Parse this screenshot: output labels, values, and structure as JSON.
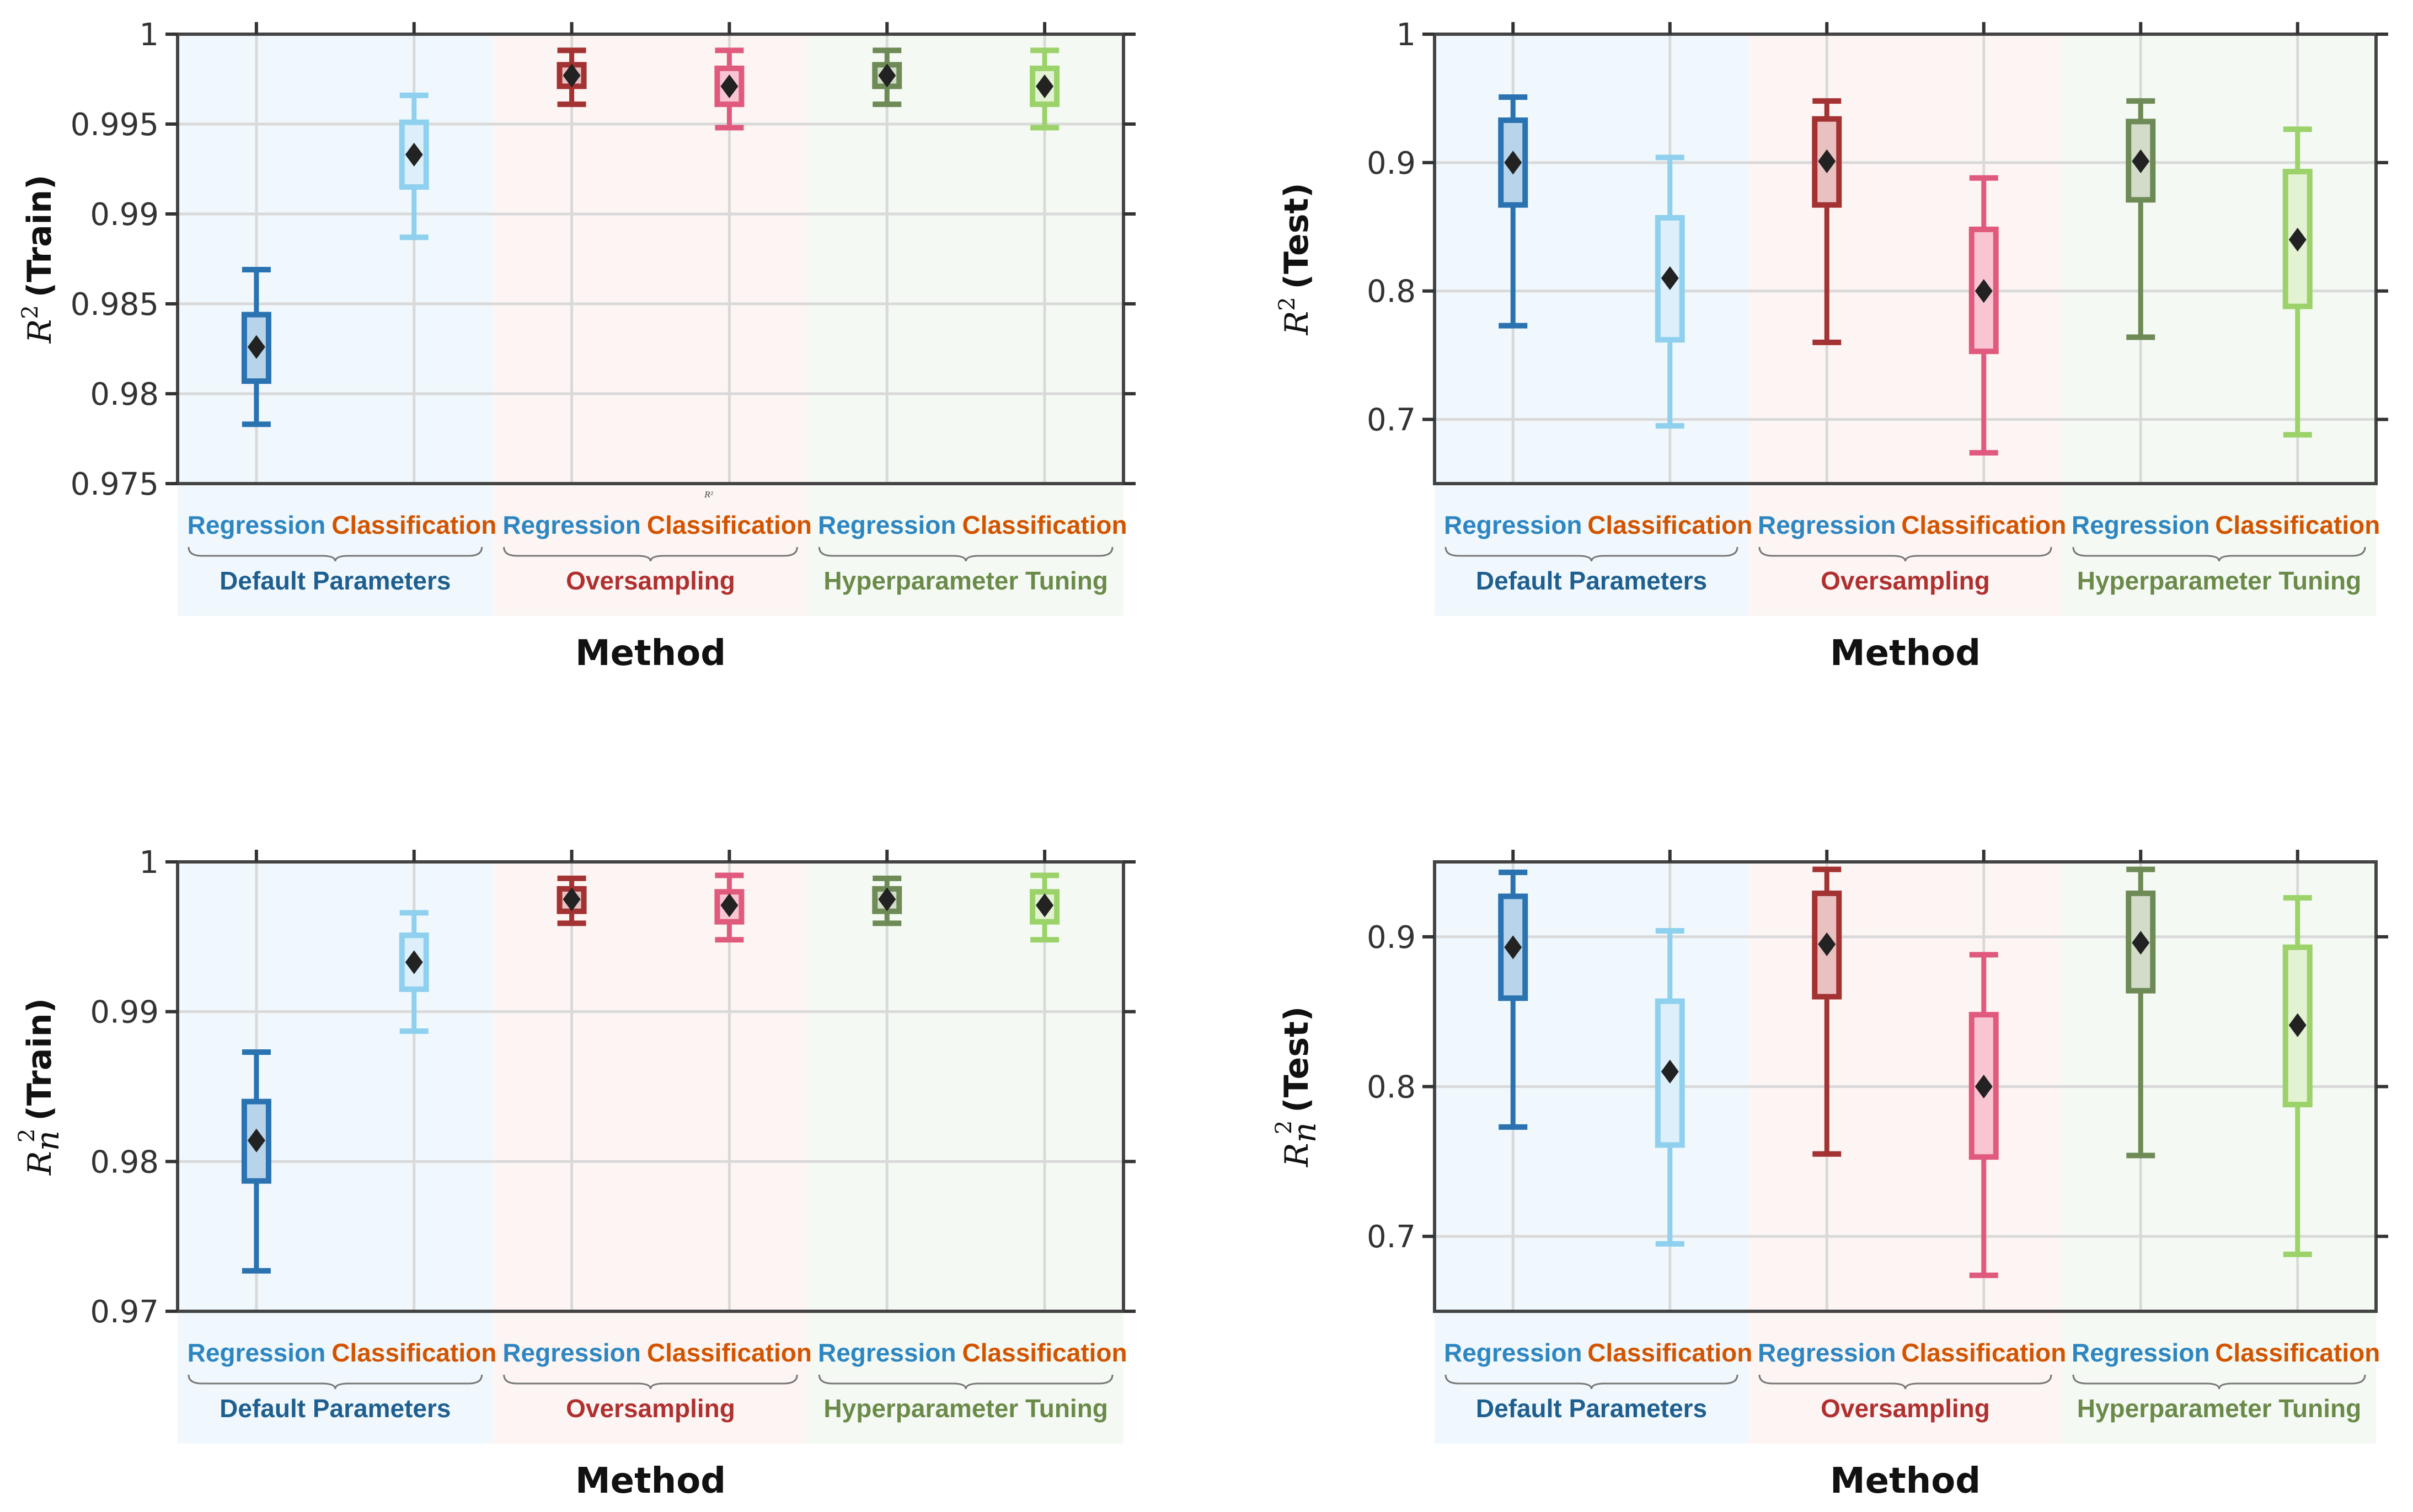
{
  "styles": {
    "colors": {
      "reg_label": "#2e86c1",
      "cls_label": "#d35400",
      "group_default": "#1f5f8f",
      "group_oversampling": "#b03030",
      "group_tuning": "#6b8a4a",
      "bg_default": "#f0f8fd",
      "bg_oversampling": "#fdf5f3",
      "bg_tuning": "#f4faf3",
      "box_edges": [
        "#2a72b0",
        "#8fd0ee",
        "#a33233",
        "#e05a7e",
        "#6e8a56",
        "#9bd26a"
      ],
      "box_fills": [
        "#b7d4ea",
        "#dceffa",
        "#e9c1c1",
        "#f9c5d3",
        "#d3dcc8",
        "#e3f2d2"
      ]
    }
  },
  "chart_data": [
    {
      "type": "box",
      "metric": "R2 Train",
      "ylabel": {
        "symbol": "R",
        "sup": "2",
        "sub": "",
        "word": "(Train)"
      },
      "xlabel": "Method",
      "ylim": [
        0.975,
        1.0
      ],
      "yticks": [
        0.975,
        0.98,
        0.985,
        0.99,
        0.995,
        1.0
      ],
      "ytick_labels": [
        "0.975",
        "0.98",
        "0.985",
        "0.99",
        "0.995",
        "1"
      ],
      "categories": [
        "Regression",
        "Classification",
        "Regression",
        "Classification",
        "Regression",
        "Classification"
      ],
      "groups": [
        "Default Parameters",
        "Oversampling",
        "Hyperparameter Tuning"
      ],
      "stray_text": "R²",
      "boxes": [
        {
          "whislo": 0.9783,
          "q1": 0.9807,
          "mean": 0.9826,
          "q3": 0.9844,
          "whishi": 0.9869
        },
        {
          "whislo": 0.9887,
          "q1": 0.9915,
          "mean": 0.9933,
          "q3": 0.9951,
          "whishi": 0.9966
        },
        {
          "whislo": 0.9961,
          "q1": 0.9971,
          "mean": 0.9977,
          "q3": 0.9983,
          "whishi": 0.9991
        },
        {
          "whislo": 0.9948,
          "q1": 0.9961,
          "mean": 0.9971,
          "q3": 0.9981,
          "whishi": 0.9991
        },
        {
          "whislo": 0.9961,
          "q1": 0.9971,
          "mean": 0.9977,
          "q3": 0.9983,
          "whishi": 0.9991
        },
        {
          "whislo": 0.9948,
          "q1": 0.9961,
          "mean": 0.9971,
          "q3": 0.9981,
          "whishi": 0.9991
        }
      ]
    },
    {
      "type": "box",
      "metric": "R2 Test",
      "ylabel": {
        "symbol": "R",
        "sup": "2",
        "sub": "",
        "word": "(Test)"
      },
      "xlabel": "Method",
      "ylim": [
        0.65,
        1.0
      ],
      "yticks": [
        0.7,
        0.8,
        0.9,
        1.0
      ],
      "ytick_labels": [
        "0.7",
        "0.8",
        "0.9",
        "1"
      ],
      "categories": [
        "Regression",
        "Classification",
        "Regression",
        "Classification",
        "Regression",
        "Classification"
      ],
      "groups": [
        "Default Parameters",
        "Oversampling",
        "Hyperparameter Tuning"
      ],
      "boxes": [
        {
          "whislo": 0.773,
          "q1": 0.867,
          "mean": 0.9,
          "q3": 0.933,
          "whishi": 0.951
        },
        {
          "whislo": 0.695,
          "q1": 0.762,
          "mean": 0.81,
          "q3": 0.857,
          "whishi": 0.904
        },
        {
          "whislo": 0.76,
          "q1": 0.867,
          "mean": 0.901,
          "q3": 0.934,
          "whishi": 0.948
        },
        {
          "whislo": 0.674,
          "q1": 0.753,
          "mean": 0.8,
          "q3": 0.848,
          "whishi": 0.888
        },
        {
          "whislo": 0.764,
          "q1": 0.871,
          "mean": 0.901,
          "q3": 0.932,
          "whishi": 0.948
        },
        {
          "whislo": 0.688,
          "q1": 0.788,
          "mean": 0.84,
          "q3": 0.893,
          "whishi": 0.926
        }
      ]
    },
    {
      "type": "box",
      "metric": "Rn2 Train",
      "ylabel": {
        "symbol": "R",
        "sup": "2",
        "sub": "n",
        "word": "(Train)"
      },
      "xlabel": "Method",
      "ylim": [
        0.97,
        1.0
      ],
      "yticks": [
        0.97,
        0.98,
        0.99,
        1.0
      ],
      "ytick_labels": [
        "0.97",
        "0.98",
        "0.99",
        "1"
      ],
      "categories": [
        "Regression",
        "Classification",
        "Regression",
        "Classification",
        "Regression",
        "Classification"
      ],
      "groups": [
        "Default Parameters",
        "Oversampling",
        "Hyperparameter Tuning"
      ],
      "boxes": [
        {
          "whislo": 0.9727,
          "q1": 0.9787,
          "mean": 0.9814,
          "q3": 0.984,
          "whishi": 0.9873
        },
        {
          "whislo": 0.9887,
          "q1": 0.9915,
          "mean": 0.9933,
          "q3": 0.9951,
          "whishi": 0.9966
        },
        {
          "whislo": 0.9959,
          "q1": 0.9967,
          "mean": 0.9975,
          "q3": 0.9982,
          "whishi": 0.9989
        },
        {
          "whislo": 0.9948,
          "q1": 0.996,
          "mean": 0.9971,
          "q3": 0.998,
          "whishi": 0.9991
        },
        {
          "whislo": 0.9959,
          "q1": 0.9967,
          "mean": 0.9975,
          "q3": 0.9982,
          "whishi": 0.9989
        },
        {
          "whislo": 0.9948,
          "q1": 0.996,
          "mean": 0.9971,
          "q3": 0.998,
          "whishi": 0.9991
        }
      ]
    },
    {
      "type": "box",
      "metric": "Rn2 Test",
      "ylabel": {
        "symbol": "R",
        "sup": "2",
        "sub": "n",
        "word": "(Test)"
      },
      "xlabel": "Method",
      "ylim": [
        0.65,
        0.95
      ],
      "yticks": [
        0.7,
        0.8,
        0.9
      ],
      "ytick_labels": [
        "0.7",
        "0.8",
        "0.9"
      ],
      "categories": [
        "Regression",
        "Classification",
        "Regression",
        "Classification",
        "Regression",
        "Classification"
      ],
      "groups": [
        "Default Parameters",
        "Oversampling",
        "Hyperparameter Tuning"
      ],
      "boxes": [
        {
          "whislo": 0.773,
          "q1": 0.859,
          "mean": 0.893,
          "q3": 0.927,
          "whishi": 0.943
        },
        {
          "whislo": 0.695,
          "q1": 0.761,
          "mean": 0.81,
          "q3": 0.857,
          "whishi": 0.904
        },
        {
          "whislo": 0.755,
          "q1": 0.86,
          "mean": 0.895,
          "q3": 0.929,
          "whishi": 0.945
        },
        {
          "whislo": 0.674,
          "q1": 0.753,
          "mean": 0.8,
          "q3": 0.848,
          "whishi": 0.888
        },
        {
          "whislo": 0.754,
          "q1": 0.864,
          "mean": 0.896,
          "q3": 0.929,
          "whishi": 0.945
        },
        {
          "whislo": 0.688,
          "q1": 0.788,
          "mean": 0.841,
          "q3": 0.893,
          "whishi": 0.926
        }
      ]
    }
  ]
}
